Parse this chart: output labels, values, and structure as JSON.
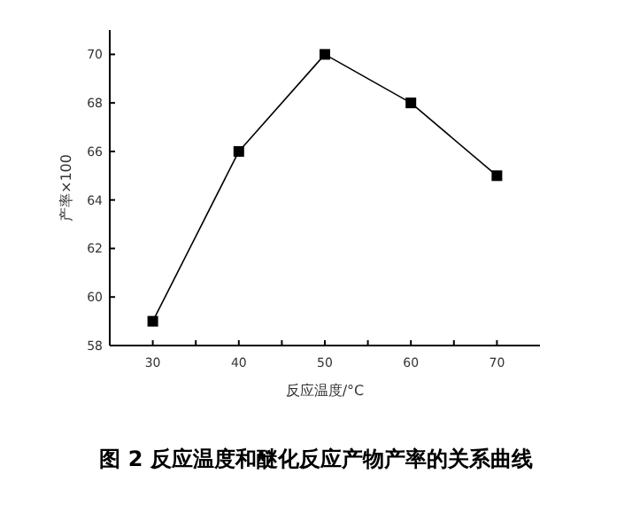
{
  "chart_data": {
    "type": "line",
    "title": "图 2 反应温度和醚化反应产物产率的关系曲线",
    "xlabel": "反应温度/°C",
    "ylabel": "产率×100",
    "x": [
      30,
      40,
      50,
      60,
      70
    ],
    "series": [
      {
        "color": "#000000",
        "values": [
          59,
          66,
          70,
          68,
          65
        ]
      }
    ],
    "xlim": [
      25,
      75
    ],
    "xticks": [
      30,
      {
        "value": 35,
        "label": null
      },
      40,
      {
        "value": 45,
        "label": null
      },
      50,
      {
        "value": 55,
        "label": null
      },
      60,
      {
        "value": 65,
        "label": null
      },
      70
    ],
    "ylim": [
      58,
      71
    ],
    "yticks": [
      58,
      60,
      62,
      64,
      66,
      68,
      70
    ],
    "marker": "square",
    "line_style": "solid",
    "grid": false
  }
}
